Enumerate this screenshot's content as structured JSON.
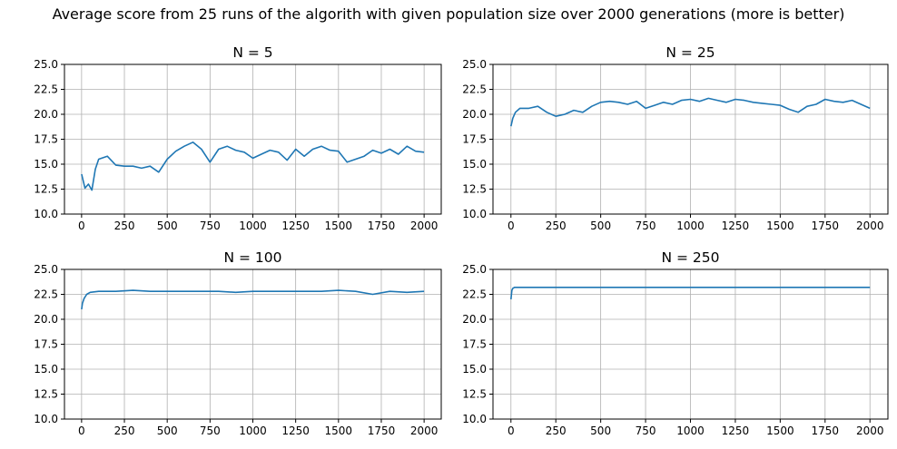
{
  "figure": {
    "suptitle": "Average score from 25 runs of the algorith with given population size over 2000 generations (more is better)"
  },
  "colors": {
    "line": "#1f77b4",
    "grid": "#b0b0b0",
    "axes": "#000000",
    "background": "#ffffff"
  },
  "chart_data": [
    {
      "type": "line",
      "title": "N = 5",
      "xlabel": "",
      "ylabel": "",
      "xlim": [
        -100,
        2100
      ],
      "ylim": [
        10.0,
        25.0
      ],
      "xticks": [
        0,
        250,
        500,
        750,
        1000,
        1250,
        1500,
        1750,
        2000
      ],
      "yticks": [
        10.0,
        12.5,
        15.0,
        17.5,
        20.0,
        22.5,
        25.0
      ],
      "ytick_labels": [
        "10.0",
        "12.5",
        "15.0",
        "17.5",
        "20.0",
        "22.5",
        "25.0"
      ],
      "grid": true,
      "legend": "none",
      "series": [
        {
          "x": [
            0,
            20,
            40,
            60,
            80,
            100,
            150,
            200,
            250,
            300,
            350,
            400,
            450,
            500,
            550,
            600,
            650,
            700,
            750,
            800,
            850,
            900,
            950,
            1000,
            1050,
            1100,
            1150,
            1200,
            1250,
            1300,
            1350,
            1400,
            1450,
            1500,
            1550,
            1600,
            1650,
            1700,
            1750,
            1800,
            1850,
            1900,
            1950,
            2000
          ],
          "y": [
            14.0,
            12.6,
            13.0,
            12.4,
            14.5,
            15.5,
            15.8,
            14.9,
            14.8,
            14.8,
            14.6,
            14.8,
            14.2,
            15.5,
            16.3,
            16.8,
            17.2,
            16.5,
            15.2,
            16.5,
            16.8,
            16.4,
            16.2,
            15.6,
            16.0,
            16.4,
            16.2,
            15.4,
            16.5,
            15.8,
            16.5,
            16.8,
            16.4,
            16.3,
            15.2,
            15.5,
            15.8,
            16.4,
            16.1,
            16.5,
            16.0,
            16.8,
            16.3,
            16.2
          ]
        }
      ]
    },
    {
      "type": "line",
      "title": "N = 25",
      "xlabel": "",
      "ylabel": "",
      "xlim": [
        -100,
        2100
      ],
      "ylim": [
        10.0,
        25.0
      ],
      "xticks": [
        0,
        250,
        500,
        750,
        1000,
        1250,
        1500,
        1750,
        2000
      ],
      "yticks": [
        10.0,
        12.5,
        15.0,
        17.5,
        20.0,
        22.5,
        25.0
      ],
      "ytick_labels": [
        "10.0",
        "12.5",
        "15.0",
        "17.5",
        "20.0",
        "22.5",
        "25.0"
      ],
      "grid": true,
      "legend": "none",
      "series": [
        {
          "x": [
            0,
            10,
            25,
            50,
            100,
            150,
            200,
            250,
            300,
            350,
            400,
            450,
            500,
            550,
            600,
            650,
            700,
            750,
            800,
            850,
            900,
            950,
            1000,
            1050,
            1100,
            1150,
            1200,
            1250,
            1300,
            1350,
            1400,
            1450,
            1500,
            1550,
            1600,
            1650,
            1700,
            1750,
            1800,
            1850,
            1900,
            1950,
            2000
          ],
          "y": [
            18.8,
            19.6,
            20.2,
            20.6,
            20.6,
            20.8,
            20.2,
            19.8,
            20.0,
            20.4,
            20.2,
            20.8,
            21.2,
            21.3,
            21.2,
            21.0,
            21.3,
            20.6,
            20.9,
            21.2,
            21.0,
            21.4,
            21.5,
            21.3,
            21.6,
            21.4,
            21.2,
            21.5,
            21.4,
            21.2,
            21.1,
            21.0,
            20.9,
            20.5,
            20.2,
            20.8,
            21.0,
            21.5,
            21.3,
            21.2,
            21.4,
            21.0,
            20.6
          ]
        }
      ]
    },
    {
      "type": "line",
      "title": "N = 100",
      "xlabel": "",
      "ylabel": "",
      "xlim": [
        -100,
        2100
      ],
      "ylim": [
        10.0,
        25.0
      ],
      "xticks": [
        0,
        250,
        500,
        750,
        1000,
        1250,
        1500,
        1750,
        2000
      ],
      "yticks": [
        10.0,
        12.5,
        15.0,
        17.5,
        20.0,
        22.5,
        25.0
      ],
      "ytick_labels": [
        "10.0",
        "12.5",
        "15.0",
        "17.5",
        "20.0",
        "22.5",
        "25.0"
      ],
      "grid": true,
      "legend": "none",
      "series": [
        {
          "x": [
            0,
            5,
            15,
            30,
            50,
            100,
            200,
            300,
            400,
            500,
            600,
            700,
            800,
            900,
            1000,
            1100,
            1200,
            1300,
            1400,
            1500,
            1600,
            1700,
            1800,
            1900,
            2000
          ],
          "y": [
            21.0,
            21.6,
            22.1,
            22.5,
            22.7,
            22.8,
            22.8,
            22.9,
            22.8,
            22.8,
            22.8,
            22.8,
            22.8,
            22.7,
            22.8,
            22.8,
            22.8,
            22.8,
            22.8,
            22.9,
            22.8,
            22.5,
            22.8,
            22.7,
            22.8
          ]
        }
      ]
    },
    {
      "type": "line",
      "title": "N = 250",
      "xlabel": "",
      "ylabel": "",
      "xlim": [
        -100,
        2100
      ],
      "ylim": [
        10.0,
        25.0
      ],
      "xticks": [
        0,
        250,
        500,
        750,
        1000,
        1250,
        1500,
        1750,
        2000
      ],
      "yticks": [
        10.0,
        12.5,
        15.0,
        17.5,
        20.0,
        22.5,
        25.0
      ],
      "ytick_labels": [
        "10.0",
        "12.5",
        "15.0",
        "17.5",
        "20.0",
        "22.5",
        "25.0"
      ],
      "grid": true,
      "legend": "none",
      "series": [
        {
          "x": [
            0,
            5,
            10,
            20,
            40,
            100,
            200,
            400,
            600,
            800,
            1000,
            1200,
            1400,
            1600,
            1800,
            2000
          ],
          "y": [
            22.0,
            22.9,
            23.1,
            23.2,
            23.2,
            23.2,
            23.2,
            23.2,
            23.2,
            23.2,
            23.2,
            23.2,
            23.2,
            23.2,
            23.2,
            23.2
          ]
        }
      ]
    }
  ]
}
